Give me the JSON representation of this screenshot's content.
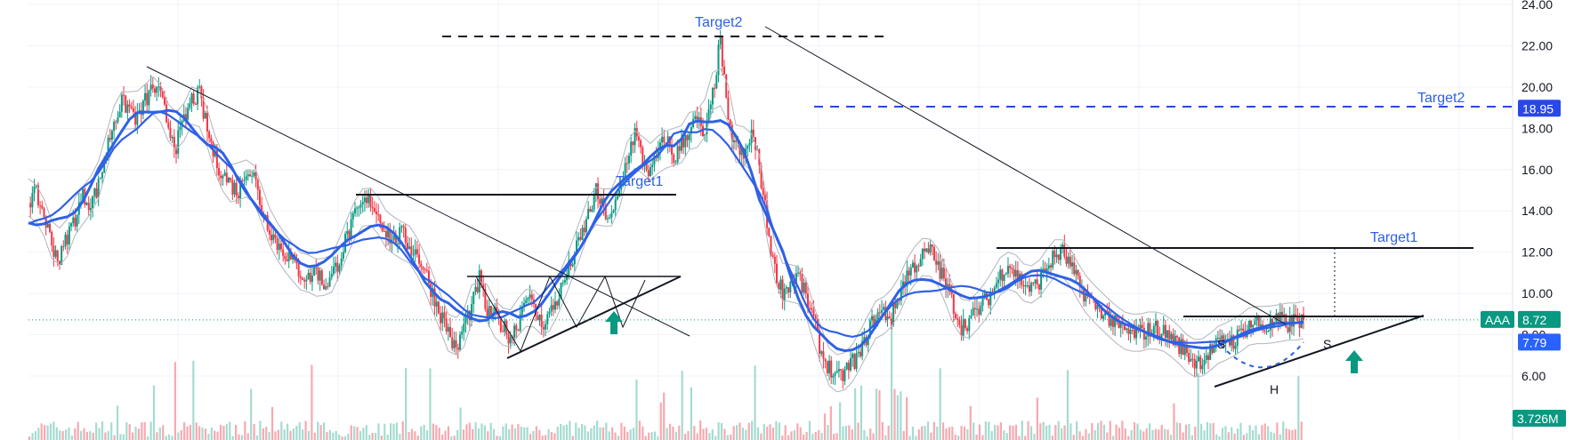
{
  "chart_data": {
    "type": "candlestick",
    "symbol": "AAA",
    "y_axis": {
      "ticks": [
        "24.00",
        "22.00",
        "20.00",
        "18.00",
        "16.00",
        "14.00",
        "12.00",
        "10.00",
        "8.00",
        "6.00"
      ],
      "tick_values": [
        24,
        22,
        20,
        18,
        16,
        14,
        12,
        10,
        8,
        6
      ],
      "range": [
        3.0,
        24.2
      ],
      "side": "right"
    },
    "series": [
      {
        "name": "Price",
        "values": [
          14.5,
          14.8,
          13.8,
          12.4,
          11.6,
          12.8,
          13.7,
          14.7,
          14.4,
          15.2,
          16.9,
          18.4,
          19.2,
          19.0,
          18.4,
          19.3,
          20.0,
          19.5,
          18.1,
          17.2,
          18.3,
          19.4,
          19.6,
          17.9,
          16.5,
          15.8,
          15.3,
          14.9,
          16.1,
          15.7,
          14.1,
          13.2,
          12.4,
          12.0,
          11.5,
          11.0,
          10.7,
          11.2,
          10.4,
          10.8,
          11.7,
          12.8,
          13.7,
          14.3,
          14.5,
          13.8,
          13.0,
          12.5,
          12.9,
          12.3,
          11.9,
          11.1,
          10.0,
          9.0,
          8.2,
          7.1,
          8.5,
          9.3,
          10.7,
          9.0,
          8.9,
          8.4,
          7.9,
          8.6,
          10.1,
          9.2,
          8.5,
          9.0,
          9.7,
          10.7,
          11.7,
          12.6,
          13.8,
          14.9,
          14.0,
          13.6,
          14.9,
          16.6,
          17.8,
          16.5,
          15.8,
          16.8,
          17.6,
          16.5,
          17.2,
          18.0,
          18.4,
          17.5,
          19.6,
          22.3,
          18.1,
          17.2,
          16.5,
          17.8,
          16.2,
          13.4,
          11.1,
          10.1,
          10.5,
          10.9,
          9.8,
          8.7,
          7.1,
          6.4,
          5.8,
          6.2,
          6.7,
          7.0,
          8.2,
          8.9,
          9.1,
          8.8,
          10.0,
          10.9,
          11.4,
          11.8,
          12.1,
          11.3,
          10.4,
          9.4,
          8.4,
          8.7,
          9.1,
          9.6,
          10.1,
          10.9,
          11.5,
          10.9,
          10.5,
          10.2,
          10.6,
          11.3,
          11.8,
          12.0,
          11.3,
          10.5,
          9.9,
          9.5,
          9.2,
          8.8,
          8.4,
          8.2,
          8.0,
          8.1,
          8.2,
          8.3,
          8.1,
          7.9,
          7.5,
          7.1,
          6.7,
          6.8,
          7.2,
          7.5,
          7.8,
          7.7,
          8.1,
          8.5,
          8.6,
          8.3,
          8.5,
          8.7,
          8.5,
          8.7,
          8.72
        ]
      },
      {
        "name": "Moving average",
        "values": []
      },
      {
        "name": "Moving average",
        "values": []
      }
    ],
    "volume": {
      "last": "3.726M"
    },
    "current_price": "8.72",
    "marker_price": "7.79",
    "right_axis_labels": [
      {
        "text": "18.95",
        "value": 18.95,
        "color": "#2848e8"
      },
      {
        "text": "8.72",
        "value": 8.72,
        "color": "#089981"
      },
      {
        "text": "7.79",
        "value": 7.79,
        "color": "#2962ff"
      }
    ],
    "annotations": {
      "targets": [
        {
          "text": "Target2",
          "value": 22.45
        },
        {
          "text": "Target1",
          "value": 14.7
        },
        {
          "text": "Target2",
          "value": 18.95
        },
        {
          "text": "Target1",
          "value": 12.15
        }
      ],
      "head_shoulders": [
        "S",
        "H",
        "S"
      ]
    },
    "colors": {
      "up": "#089981",
      "down": "#f23645",
      "ma": "#2e61e6",
      "target_text": "#2e61e6",
      "axis_text": "#131722",
      "grid": "#f0f3fa"
    },
    "grid": true
  }
}
